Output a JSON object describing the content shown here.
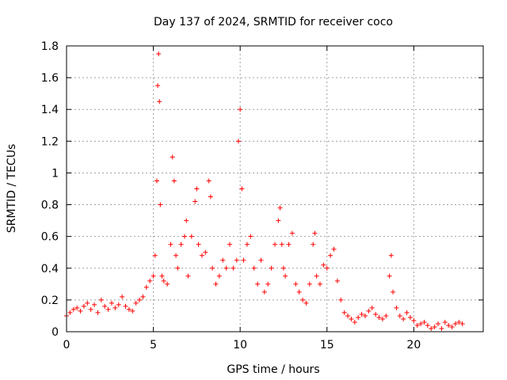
{
  "chart_data": {
    "type": "scatter",
    "title": "Day 137 of 2024, SRMTID for receiver coco",
    "xlabel": "GPS time / hours",
    "ylabel": "SRMTID / TECUs",
    "xlim": [
      0,
      24
    ],
    "ylim": [
      0,
      1.8
    ],
    "xticks": [
      0,
      5,
      10,
      15,
      20
    ],
    "xtick_labels": [
      "0",
      "5",
      "10",
      "15",
      "20"
    ],
    "yticks": [
      0,
      0.2,
      0.4,
      0.6,
      0.8,
      1.0,
      1.2,
      1.4,
      1.6,
      1.8
    ],
    "ytick_labels": [
      "0",
      "0.2",
      "0.4",
      "0.6",
      "0.8",
      "1",
      "1.2",
      "1.4",
      "1.6",
      "1.8"
    ],
    "grid": true,
    "marker": "+",
    "color": "#ff0000",
    "series": [
      {
        "name": "SRMTID",
        "x": [
          0.0,
          0.2,
          0.4,
          0.6,
          0.8,
          1.0,
          1.2,
          1.4,
          1.6,
          1.8,
          2.0,
          2.2,
          2.4,
          2.6,
          2.8,
          3.0,
          3.2,
          3.4,
          3.6,
          3.8,
          4.0,
          4.2,
          4.4,
          4.6,
          4.8,
          5.0,
          5.1,
          5.2,
          5.25,
          5.3,
          5.35,
          5.4,
          5.5,
          5.6,
          5.8,
          6.0,
          6.1,
          6.2,
          6.3,
          6.4,
          6.6,
          6.8,
          6.9,
          7.0,
          7.2,
          7.4,
          7.5,
          7.6,
          7.8,
          8.0,
          8.2,
          8.3,
          8.4,
          8.6,
          8.8,
          9.0,
          9.2,
          9.4,
          9.6,
          9.8,
          9.9,
          10.0,
          10.1,
          10.2,
          10.4,
          10.6,
          10.8,
          11.0,
          11.2,
          11.4,
          11.6,
          11.8,
          12.0,
          12.2,
          12.3,
          12.4,
          12.5,
          12.6,
          12.8,
          13.0,
          13.2,
          13.4,
          13.6,
          13.8,
          14.0,
          14.2,
          14.3,
          14.4,
          14.6,
          14.8,
          15.0,
          15.2,
          15.4,
          15.6,
          15.8,
          16.0,
          16.2,
          16.4,
          16.6,
          16.8,
          17.0,
          17.2,
          17.4,
          17.6,
          17.8,
          18.0,
          18.2,
          18.4,
          18.6,
          18.7,
          18.8,
          19.0,
          19.2,
          19.4,
          19.6,
          19.8,
          20.0,
          20.2,
          20.4,
          20.6,
          20.8,
          21.0,
          21.2,
          21.4,
          21.6,
          21.8,
          22.0,
          22.2,
          22.4,
          22.6,
          22.8
        ],
        "y": [
          0.1,
          0.12,
          0.14,
          0.15,
          0.13,
          0.16,
          0.18,
          0.14,
          0.17,
          0.12,
          0.2,
          0.16,
          0.14,
          0.18,
          0.15,
          0.17,
          0.22,
          0.16,
          0.14,
          0.13,
          0.18,
          0.2,
          0.22,
          0.28,
          0.32,
          0.35,
          0.48,
          0.95,
          1.55,
          1.75,
          1.45,
          0.8,
          0.35,
          0.32,
          0.3,
          0.55,
          1.1,
          0.95,
          0.48,
          0.4,
          0.55,
          0.6,
          0.7,
          0.35,
          0.6,
          0.82,
          0.9,
          0.55,
          0.48,
          0.5,
          0.95,
          0.85,
          0.4,
          0.3,
          0.35,
          0.45,
          0.4,
          0.55,
          0.4,
          0.45,
          1.2,
          1.4,
          0.9,
          0.45,
          0.55,
          0.6,
          0.4,
          0.3,
          0.45,
          0.25,
          0.3,
          0.4,
          0.55,
          0.7,
          0.78,
          0.55,
          0.4,
          0.35,
          0.55,
          0.62,
          0.3,
          0.25,
          0.2,
          0.18,
          0.3,
          0.55,
          0.62,
          0.35,
          0.3,
          0.42,
          0.4,
          0.48,
          0.52,
          0.32,
          0.2,
          0.12,
          0.1,
          0.08,
          0.06,
          0.09,
          0.11,
          0.1,
          0.13,
          0.15,
          0.11,
          0.09,
          0.08,
          0.1,
          0.35,
          0.48,
          0.25,
          0.15,
          0.1,
          0.08,
          0.12,
          0.09,
          0.07,
          0.04,
          0.05,
          0.06,
          0.04,
          0.02,
          0.03,
          0.05,
          0.02,
          0.06,
          0.04,
          0.03,
          0.05,
          0.06,
          0.05
        ]
      }
    ]
  }
}
